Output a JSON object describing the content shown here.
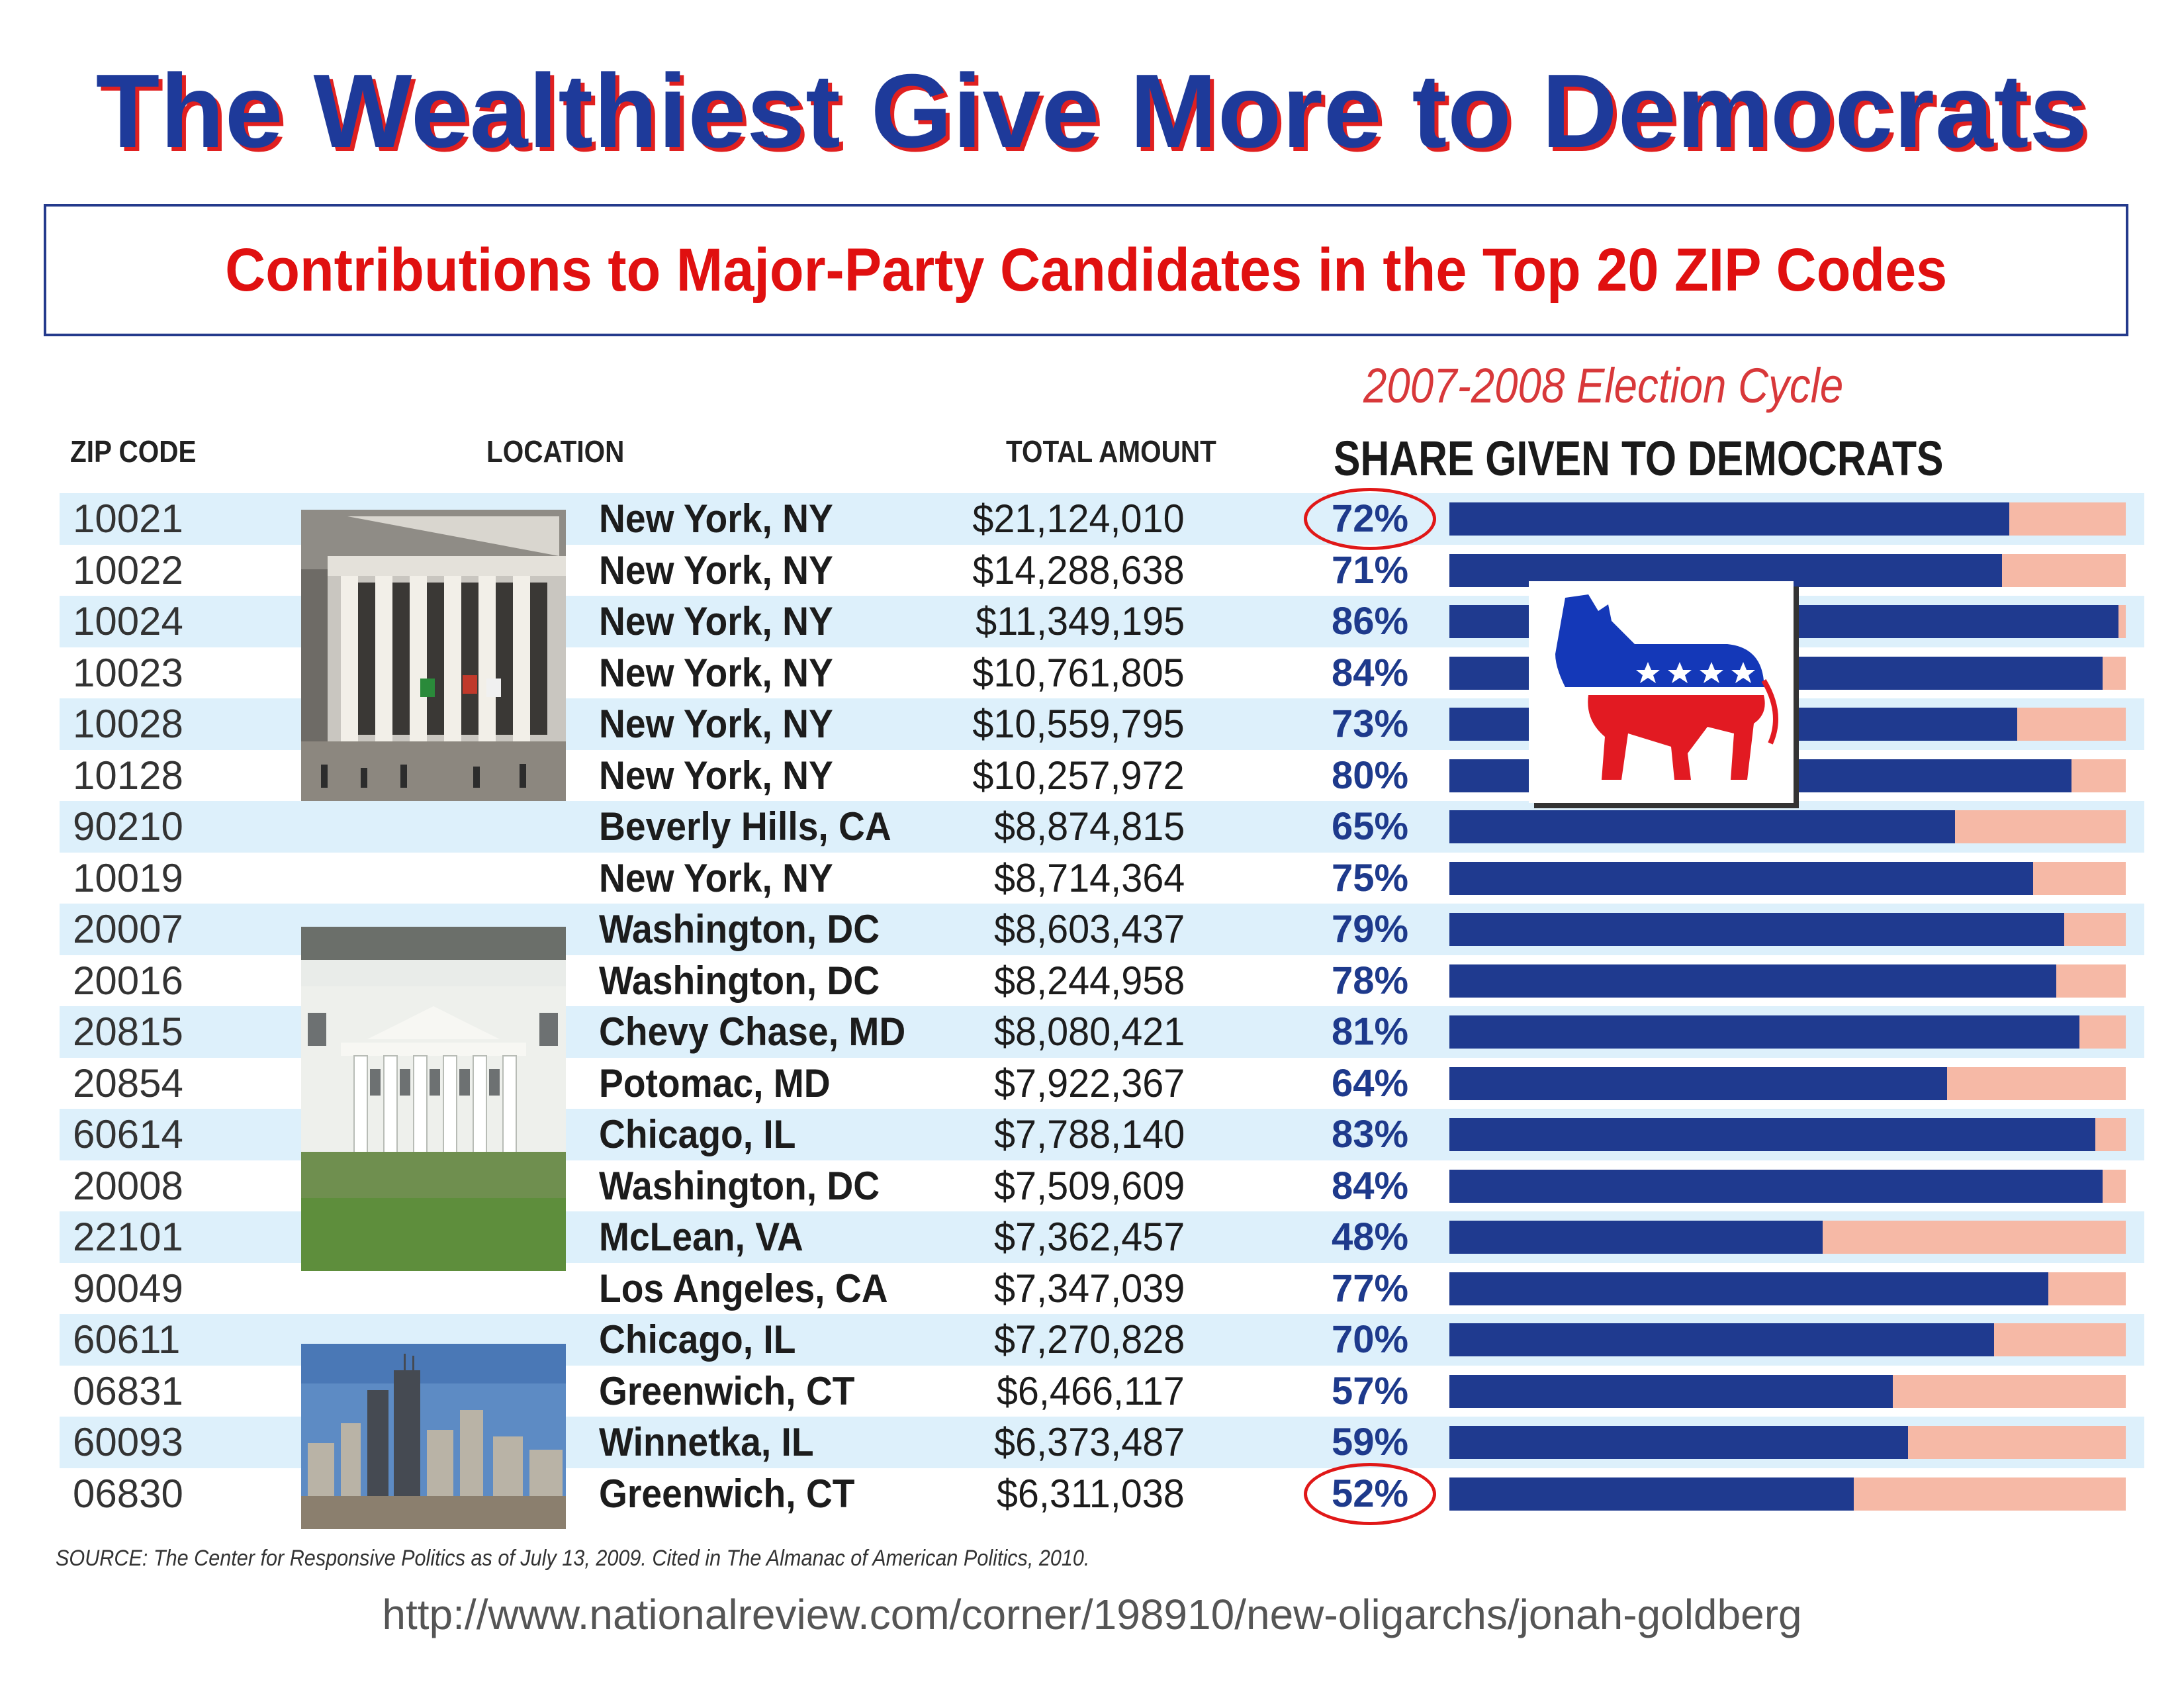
{
  "title": "The Wealthiest Give More to Democrats",
  "subtitle": "Contributions to Major-Party Candidates in the Top 20 ZIP Codes",
  "cycle_label": "2007-2008 Election Cycle",
  "headers": {
    "zip": "ZIP CODE",
    "location": "LOCATION",
    "total": "TOTAL AMOUNT",
    "share": "SHARE GIVEN TO DEMOCRATS"
  },
  "colors": {
    "dem_bar": "#1f3a8f",
    "rep_bar": "#f6b9a6",
    "accent_red": "#e01818",
    "title_blue": "#1e3a9a"
  },
  "chart_data": {
    "type": "bar",
    "title": "Contributions to Major-Party Candidates in the Top 20 ZIP Codes",
    "subtitle": "2007-2008 Election Cycle",
    "xlabel": "SHARE GIVEN TO DEMOCRATS",
    "xlim": [
      0,
      100
    ],
    "unit": "%",
    "highlighted": [
      "10021",
      "06830"
    ],
    "rows": [
      {
        "zip": "10021",
        "location": "New York, NY",
        "total": "$21,124,010",
        "share": 72,
        "label": "72%"
      },
      {
        "zip": "10022",
        "location": "New York, NY",
        "total": "$14,288,638",
        "share": 71,
        "label": "71%"
      },
      {
        "zip": "10024",
        "location": "New York, NY",
        "total": "$11,349,195",
        "share": 86,
        "label": "86%"
      },
      {
        "zip": "10023",
        "location": "New York, NY",
        "total": "$10,761,805",
        "share": 84,
        "label": "84%"
      },
      {
        "zip": "10028",
        "location": "New York, NY",
        "total": "$10,559,795",
        "share": 73,
        "label": "73%"
      },
      {
        "zip": "10128",
        "location": "New York, NY",
        "total": "$10,257,972",
        "share": 80,
        "label": "80%"
      },
      {
        "zip": "90210",
        "location": "Beverly Hills, CA",
        "total": "$8,874,815",
        "share": 65,
        "label": "65%"
      },
      {
        "zip": "10019",
        "location": "New York, NY",
        "total": "$8,714,364",
        "share": 75,
        "label": "75%"
      },
      {
        "zip": "20007",
        "location": "Washington, DC",
        "total": "$8,603,437",
        "share": 79,
        "label": "79%"
      },
      {
        "zip": "20016",
        "location": "Washington, DC",
        "total": "$8,244,958",
        "share": 78,
        "label": "78%"
      },
      {
        "zip": "20815",
        "location": "Chevy Chase, MD",
        "total": "$8,080,421",
        "share": 81,
        "label": "81%"
      },
      {
        "zip": "20854",
        "location": "Potomac, MD",
        "total": "$7,922,367",
        "share": 64,
        "label": "64%"
      },
      {
        "zip": "60614",
        "location": "Chicago, IL",
        "total": "$7,788,140",
        "share": 83,
        "label": "83%"
      },
      {
        "zip": "20008",
        "location": "Washington, DC",
        "total": "$7,509,609",
        "share": 84,
        "label": "84%"
      },
      {
        "zip": "22101",
        "location": "McLean, VA",
        "total": "$7,362,457",
        "share": 48,
        "label": "48%"
      },
      {
        "zip": "90049",
        "location": "Los Angeles, CA",
        "total": "$7,347,039",
        "share": 77,
        "label": "77%"
      },
      {
        "zip": "60611",
        "location": "Chicago, IL",
        "total": "$7,270,828",
        "share": 70,
        "label": "70%"
      },
      {
        "zip": "06831",
        "location": "Greenwich, CT",
        "total": "$6,466,117",
        "share": 57,
        "label": "57%"
      },
      {
        "zip": "60093",
        "location": "Winnetka, IL",
        "total": "$6,373,487",
        "share": 59,
        "label": "59%"
      },
      {
        "zip": "06830",
        "location": "Greenwich, CT",
        "total": "$6,311,038",
        "share": 52,
        "label": "52%"
      }
    ]
  },
  "source": "SOURCE: The Center for Responsive Politics as of July 13, 2009. Cited in The Almanac of American Politics, 2010.",
  "url": "http://www.nationalreview.com/corner/198910/new-oligarchs/jonah-goldberg"
}
